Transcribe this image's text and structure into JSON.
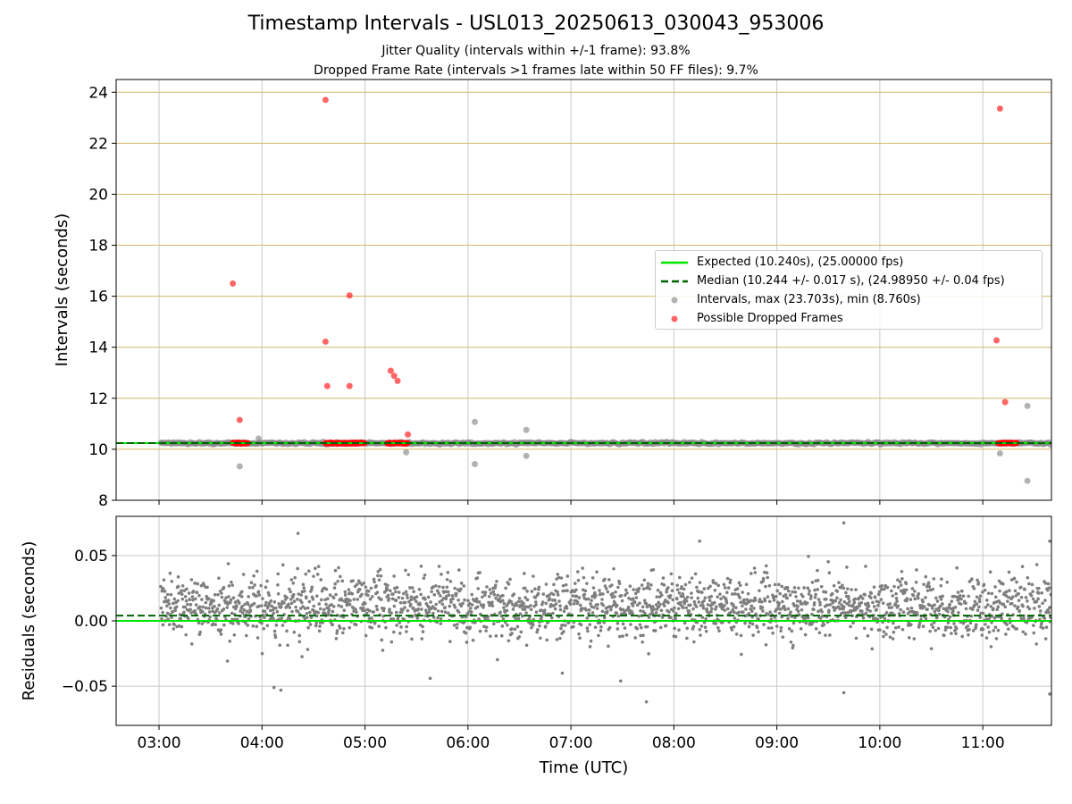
{
  "figure": {
    "title": "Timestamp Intervals - USL013_20250613_030043_953006",
    "subtitle1": "Jitter Quality (intervals within +/-1 frame): 93.8%",
    "subtitle2": "Dropped Frame Rate (intervals >1 frames late within 50 FF files): 9.7%"
  },
  "legend": {
    "expected": "Expected (10.240s), (25.00000 fps)",
    "median": "Median (10.244 +/- 0.017 s), (24.98950 +/- 0.04 fps)",
    "intervals": "Intervals, max (23.703s), min (8.760s)",
    "dropped": "Possible Dropped Frames"
  },
  "colors": {
    "expected": "#00e600",
    "median": "#006400",
    "intervals": "#7f7f7f",
    "dropped": "#ff0000",
    "hgrid_top": "#d4b86a",
    "grid": "#c8c8c8"
  },
  "chart_data": [
    {
      "type": "scatter",
      "panel": "top",
      "ylabel": "Intervals (seconds)",
      "xlabel": "",
      "xlim": [
        "02:35",
        "11:40"
      ],
      "ylim": [
        8,
        24.5
      ],
      "x_ticks": [
        "03:00",
        "04:00",
        "05:00",
        "06:00",
        "07:00",
        "08:00",
        "09:00",
        "10:00",
        "11:00"
      ],
      "y_ticks": [
        8,
        10,
        12,
        14,
        16,
        18,
        20,
        22,
        24
      ],
      "expected": 10.24,
      "median": 10.244,
      "series": [
        {
          "name": "Intervals, max (23.703s), min (8.760s)",
          "note": "dense band of points at about 10.24 s from 03:01 to 11:40",
          "band": {
            "x_start": "03:01",
            "x_end": "11:40",
            "y": 10.24
          },
          "outliers": [
            {
              "x": "03:47",
              "y": 9.33
            },
            {
              "x": "03:58",
              "y": 10.42
            },
            {
              "x": "05:24",
              "y": 9.88
            },
            {
              "x": "06:04",
              "y": 11.07
            },
            {
              "x": "06:04",
              "y": 9.42
            },
            {
              "x": "06:34",
              "y": 10.76
            },
            {
              "x": "06:34",
              "y": 9.74
            },
            {
              "x": "11:10",
              "y": 9.84
            },
            {
              "x": "11:26",
              "y": 11.7
            },
            {
              "x": "11:26",
              "y": 8.76
            }
          ]
        },
        {
          "name": "Possible Dropped Frames",
          "clusters": [
            {
              "x_start": "03:43",
              "x_end": "03:52",
              "y": 10.24
            },
            {
              "x_start": "04:37",
              "x_end": "04:55",
              "y": 10.24
            },
            {
              "x_start": "04:51",
              "x_end": "05:00",
              "y": 10.24
            },
            {
              "x_start": "05:13",
              "x_end": "05:25",
              "y": 10.24
            },
            {
              "x_start": "11:09",
              "x_end": "11:20",
              "y": 10.24
            }
          ],
          "points": [
            {
              "x": "03:43",
              "y": 16.5
            },
            {
              "x": "03:47",
              "y": 11.15
            },
            {
              "x": "04:37",
              "y": 23.7
            },
            {
              "x": "04:37",
              "y": 14.22
            },
            {
              "x": "04:38",
              "y": 12.48
            },
            {
              "x": "04:51",
              "y": 16.03
            },
            {
              "x": "04:51",
              "y": 12.48
            },
            {
              "x": "05:15",
              "y": 13.08
            },
            {
              "x": "05:17",
              "y": 12.88
            },
            {
              "x": "05:19",
              "y": 12.68
            },
            {
              "x": "05:25",
              "y": 10.58
            },
            {
              "x": "11:08",
              "y": 14.27
            },
            {
              "x": "11:10",
              "y": 23.36
            },
            {
              "x": "11:13",
              "y": 11.85
            }
          ]
        }
      ]
    },
    {
      "type": "scatter",
      "panel": "bottom",
      "ylabel": "Residuals (seconds)",
      "xlabel": "Time (UTC)",
      "xlim": [
        "02:35",
        "11:40"
      ],
      "ylim": [
        -0.08,
        0.08
      ],
      "x_ticks": [
        "03:00",
        "04:00",
        "05:00",
        "06:00",
        "07:00",
        "08:00",
        "09:00",
        "10:00",
        "11:00"
      ],
      "y_ticks": [
        -0.05,
        0.0,
        0.05
      ],
      "y_tick_labels": [
        "−0.05",
        "0.00",
        "0.05"
      ],
      "expected": 0.0,
      "median": 0.004,
      "series": [
        {
          "name": "Residuals",
          "note": "dense scatter of residuals spanning 03:01 to 11:40, centred near 0.01 s",
          "cloud": {
            "x_start": "03:01",
            "x_end": "11:40",
            "center": 0.011,
            "spread": 0.012
          },
          "outliers": [
            {
              "x": "04:21",
              "y": 0.067
            },
            {
              "x": "09:39",
              "y": 0.075
            },
            {
              "x": "08:15",
              "y": 0.061
            },
            {
              "x": "11:39",
              "y": 0.061
            },
            {
              "x": "04:07",
              "y": -0.051
            },
            {
              "x": "04:11",
              "y": -0.053
            },
            {
              "x": "07:44",
              "y": -0.062
            },
            {
              "x": "09:39",
              "y": -0.055
            },
            {
              "x": "11:39",
              "y": -0.056
            },
            {
              "x": "05:38",
              "y": -0.044
            },
            {
              "x": "07:29",
              "y": -0.046
            },
            {
              "x": "06:55",
              "y": -0.04
            }
          ]
        }
      ]
    }
  ]
}
